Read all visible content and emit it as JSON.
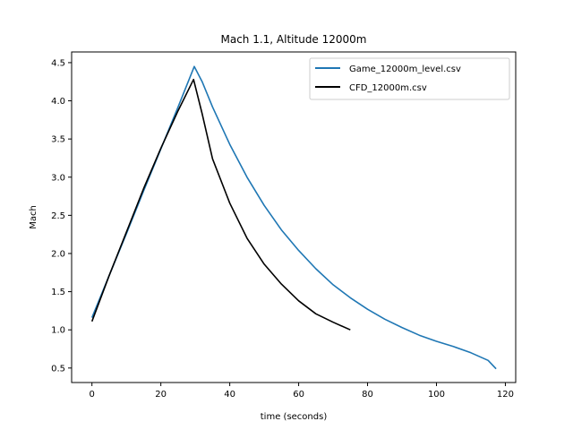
{
  "chart_data": {
    "type": "line",
    "title": "Mach 1.1, Altitude 12000m",
    "xlabel": "time (seconds)",
    "ylabel": "Mach",
    "xlim": [
      -5.9,
      123.0
    ],
    "ylim": [
      0.31,
      4.64
    ],
    "xticks": [
      0,
      20,
      40,
      60,
      80,
      100,
      120
    ],
    "yticks": [
      0.5,
      1.0,
      1.5,
      2.0,
      2.5,
      3.0,
      3.5,
      4.0,
      4.5
    ],
    "xtick_labels": [
      "0",
      "20",
      "40",
      "60",
      "80",
      "100",
      "120"
    ],
    "ytick_labels": [
      "0.5",
      "1.0",
      "1.5",
      "2.0",
      "2.5",
      "3.0",
      "3.5",
      "4.0",
      "4.5"
    ],
    "grid": false,
    "legend_position": "top-right",
    "series": [
      {
        "name": "Game_12000m_level.csv",
        "color": "#1f77b4",
        "x": [
          0,
          5,
          10,
          15,
          20,
          25,
          29.7,
          32,
          35,
          40,
          45,
          50,
          55,
          60,
          65,
          70,
          75,
          80,
          85,
          90,
          95,
          100,
          105,
          110,
          115,
          117.3
        ],
        "y": [
          1.16,
          1.71,
          2.26,
          2.82,
          3.37,
          3.92,
          4.45,
          4.25,
          3.92,
          3.43,
          3.0,
          2.63,
          2.31,
          2.04,
          1.8,
          1.59,
          1.42,
          1.27,
          1.14,
          1.03,
          0.93,
          0.85,
          0.78,
          0.7,
          0.6,
          0.49
        ]
      },
      {
        "name": "CFD_12000m.csv",
        "color": "#000000",
        "x": [
          0,
          5,
          10,
          15,
          20,
          25,
          29.5,
          32,
          35,
          40,
          45,
          50,
          55,
          60,
          65,
          70,
          75
        ],
        "y": [
          1.11,
          1.71,
          2.28,
          2.85,
          3.38,
          3.87,
          4.28,
          3.83,
          3.24,
          2.66,
          2.2,
          1.86,
          1.6,
          1.38,
          1.21,
          1.1,
          1.0
        ]
      }
    ]
  }
}
